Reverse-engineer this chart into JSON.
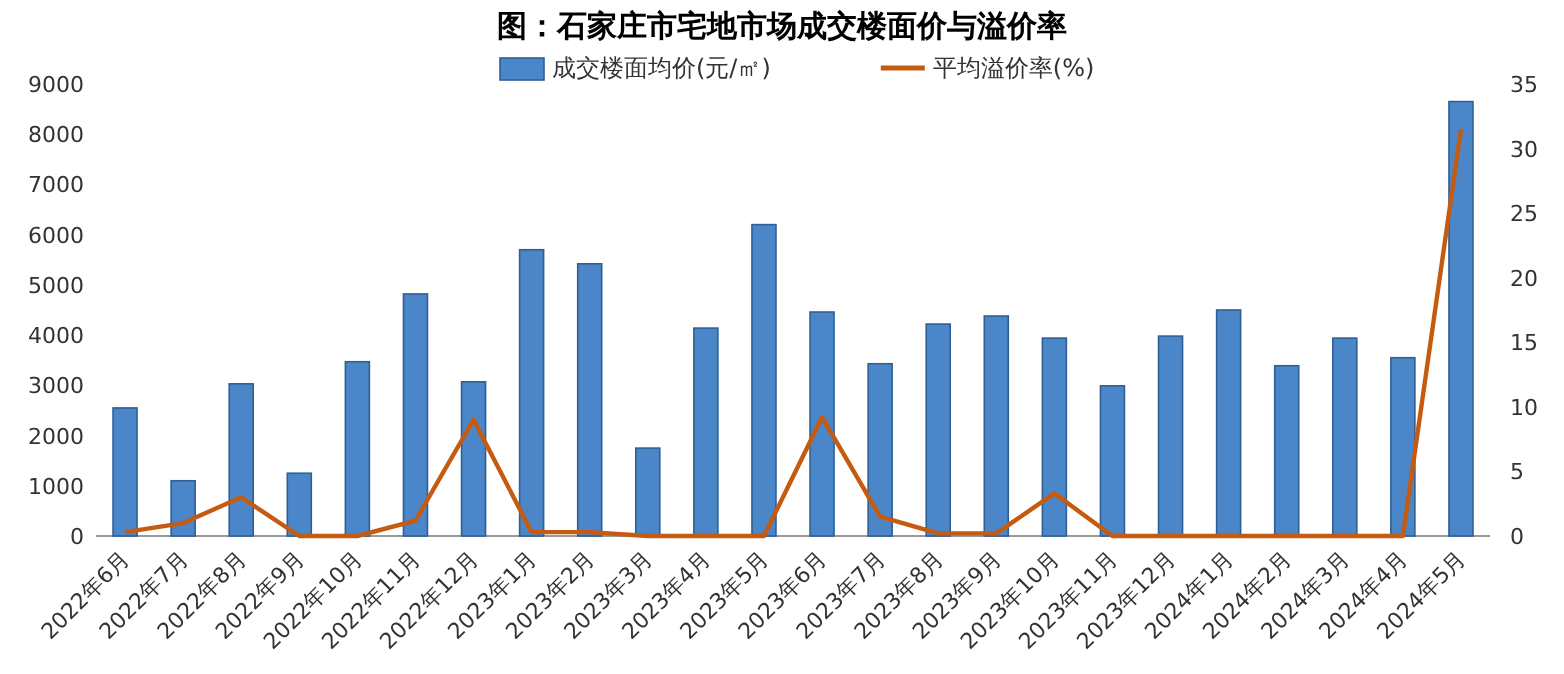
{
  "chart_data": {
    "type": "bar",
    "title": "图：石家庄市宅地市场成交楼面价与溢价率",
    "categories": [
      "2022年6月",
      "2022年7月",
      "2022年8月",
      "2022年9月",
      "2022年10月",
      "2022年11月",
      "2022年12月",
      "2023年1月",
      "2023年2月",
      "2023年3月",
      "2023年4月",
      "2023年5月",
      "2023年6月",
      "2023年7月",
      "2023年8月",
      "2023年9月",
      "2023年10月",
      "2023年11月",
      "2023年12月",
      "2024年1月",
      "2024年2月",
      "2024年3月",
      "2024年4月",
      "2024年5月"
    ],
    "series": [
      {
        "name": "成交楼面均价(元/㎡)",
        "color": "#4a86c8",
        "values": [
          2550,
          1100,
          3030,
          1250,
          3470,
          4820,
          3070,
          5700,
          5420,
          1750,
          4140,
          6200,
          4460,
          3430,
          4220,
          4380,
          3940,
          2990,
          3980,
          4500,
          3390,
          3940,
          3550,
          8650
        ]
      },
      {
        "name": "平均溢价率(%)",
        "type": "line",
        "axis": "y2",
        "color": "#c55a11",
        "values": [
          0.3,
          1,
          3,
          0,
          0,
          1.2,
          9,
          0.3,
          0.3,
          0,
          0,
          0,
          9.2,
          1.5,
          0.2,
          0.2,
          3.3,
          0,
          0,
          0,
          0,
          0,
          0,
          31.5
        ]
      }
    ],
    "ylim": [
      0,
      9000
    ],
    "yticks": [
      0,
      1000,
      2000,
      3000,
      4000,
      5000,
      6000,
      7000,
      8000,
      9000
    ],
    "y2lim": [
      0,
      35
    ],
    "y2ticks": [
      0,
      5,
      10,
      15,
      20,
      25,
      30,
      35
    ],
    "legend": "top",
    "marker": "none",
    "line_style": "solid"
  }
}
